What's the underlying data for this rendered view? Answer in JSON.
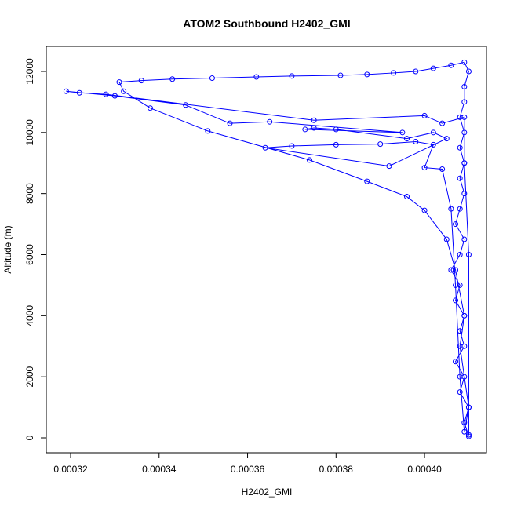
{
  "chart_data": {
    "type": "line",
    "title": "ATOM2 Southbound H2402_GMI",
    "xlabel": "H2402_GMI",
    "ylabel": "Altitude (m)",
    "color": "#0000ff",
    "x": [
      0.00041,
      0.000409,
      0.00041,
      0.000408,
      0.000409,
      0.000407,
      0.000409,
      0.000408,
      0.000409,
      0.000407,
      0.000408,
      0.000406,
      0.000408,
      0.000409,
      0.000407,
      0.000408,
      0.000409,
      0.000408,
      0.000409,
      0.000408,
      0.000409,
      0.000408,
      0.000409,
      0.000409,
      0.00041,
      0.000409,
      0.000406,
      0.000402,
      0.000398,
      0.000393,
      0.000387,
      0.000381,
      0.00037,
      0.000362,
      0.000352,
      0.000343,
      0.000336,
      0.000331,
      0.000332,
      0.000338,
      0.000351,
      0.000374,
      0.000387,
      0.000396,
      0.0004,
      0.000405,
      0.000407,
      0.000409,
      0.000408,
      0.00041,
      0.000409,
      0.000408,
      0.000407,
      0.000406,
      0.000404,
      0.0004,
      0.000402,
      0.000398,
      0.00039,
      0.00038,
      0.00037,
      0.000364,
      0.000392,
      0.000405,
      0.000402,
      0.000396,
      0.00038,
      0.000375,
      0.000373,
      0.000395,
      0.000365,
      0.000356,
      0.000346,
      0.00033,
      0.000319,
      0.000322,
      0.000328,
      0.000375,
      0.0004,
      0.000404,
      0.000409,
      0.000409,
      0.00041,
      0.00041
    ],
    "values": [
      50,
      500,
      1000,
      1500,
      2000,
      2500,
      3000,
      3500,
      4000,
      4500,
      5000,
      5500,
      6000,
      6500,
      7000,
      7500,
      8000,
      8500,
      9000,
      9500,
      10000,
      10500,
      11000,
      11500,
      12000,
      12300,
      12200,
      12100,
      12000,
      11950,
      11900,
      11870,
      11850,
      11820,
      11780,
      11750,
      11700,
      11650,
      11350,
      10800,
      10050,
      9100,
      8400,
      7900,
      7450,
      6500,
      5500,
      4000,
      3000,
      1000,
      200,
      2000,
      5000,
      7500,
      8800,
      8850,
      9600,
      9700,
      9620,
      9600,
      9560,
      9500,
      8900,
      9800,
      10000,
      9800,
      10100,
      10150,
      10100,
      10000,
      10350,
      10300,
      10900,
      11200,
      11350,
      11300,
      11250,
      10400,
      10550,
      10300,
      10500,
      9000,
      6000,
      100
    ],
    "xlim": [
      0.0003145,
      0.000414
    ],
    "ylim": [
      -488,
      12822
    ],
    "xticks": [
      0.00032,
      0.00034,
      0.00036,
      0.00038,
      {
        "value": 0.0004,
        "label": "0.00040"
      }
    ],
    "yticks": [
      0,
      2000,
      4000,
      6000,
      8000,
      10000,
      12000
    ]
  }
}
